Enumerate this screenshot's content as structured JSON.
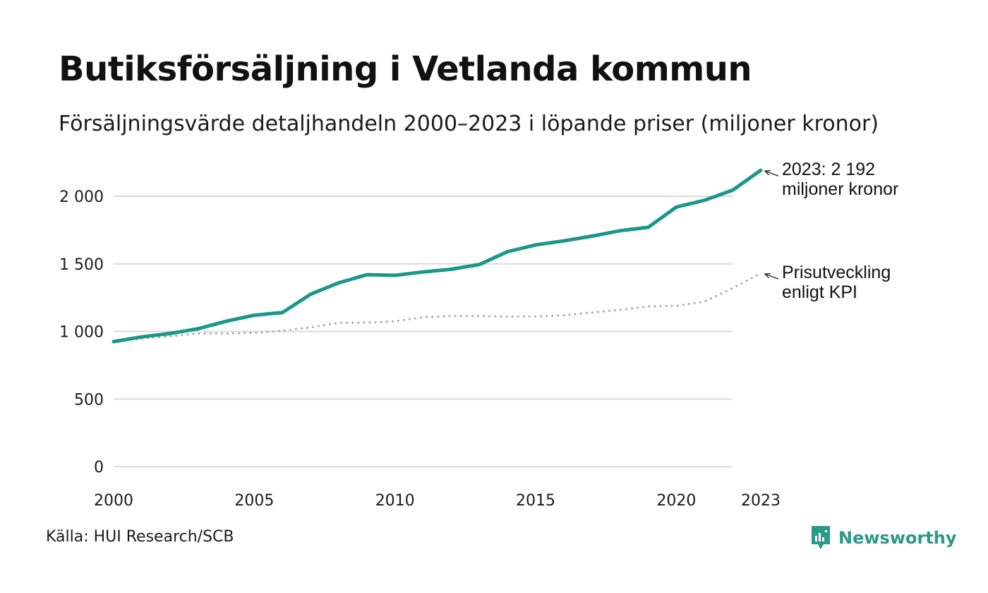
{
  "title": "Butiksförsäljning i Vetlanda kommun",
  "subtitle": "Försäljningsvärde detaljhandeln 2000–2023 i löpande priser (miljoner kronor)",
  "source": "Källa: HUI Research/SCB",
  "brand": {
    "name": "Newsworthy",
    "icon": "newsworthy-logo-icon",
    "color": "#2a9988"
  },
  "colors": {
    "main_line": "#18978a",
    "kpi_line": "#a8a8a8",
    "grid": "#dcdcdc",
    "text": "#1a1a1a"
  },
  "chart_data": {
    "type": "line",
    "title": "Butiksförsäljning i Vetlanda kommun",
    "xlabel": "",
    "ylabel": "",
    "xlim": [
      2000,
      2023
    ],
    "ylim": [
      0,
      2200
    ],
    "grid": true,
    "x_ticks": [
      2000,
      2005,
      2010,
      2015,
      2020,
      2023
    ],
    "x_tick_labels": [
      "2000",
      "2005",
      "2010",
      "2015",
      "2020",
      "2023"
    ],
    "y_ticks": [
      0,
      500,
      1000,
      1500,
      2000
    ],
    "y_tick_labels": [
      "0",
      "500",
      "1 000",
      "1 500",
      "2 000"
    ],
    "x": [
      2000,
      2001,
      2002,
      2003,
      2004,
      2005,
      2006,
      2007,
      2008,
      2009,
      2010,
      2011,
      2012,
      2013,
      2014,
      2015,
      2016,
      2017,
      2018,
      2019,
      2020,
      2021,
      2022,
      2023
    ],
    "series": [
      {
        "name": "Försäljningsvärde",
        "style": "solid",
        "values": [
          925,
          960,
          985,
          1020,
          1075,
          1120,
          1140,
          1275,
          1360,
          1420,
          1415,
          1440,
          1460,
          1495,
          1590,
          1640,
          1670,
          1705,
          1745,
          1770,
          1920,
          1970,
          2045,
          2192
        ]
      },
      {
        "name": "Prisutveckling enligt KPI",
        "style": "dotted",
        "values": [
          925,
          945,
          965,
          985,
          985,
          990,
          1005,
          1030,
          1065,
          1065,
          1075,
          1105,
          1115,
          1115,
          1110,
          1110,
          1120,
          1140,
          1160,
          1185,
          1190,
          1220,
          1320,
          1430
        ]
      }
    ],
    "annotations": [
      {
        "series": "Försäljningsvärde",
        "lines": [
          "2023: 2 192",
          "miljoner kronor"
        ]
      },
      {
        "series": "Prisutveckling enligt KPI",
        "lines": [
          "Prisutveckling",
          "enligt KPI"
        ]
      }
    ]
  }
}
